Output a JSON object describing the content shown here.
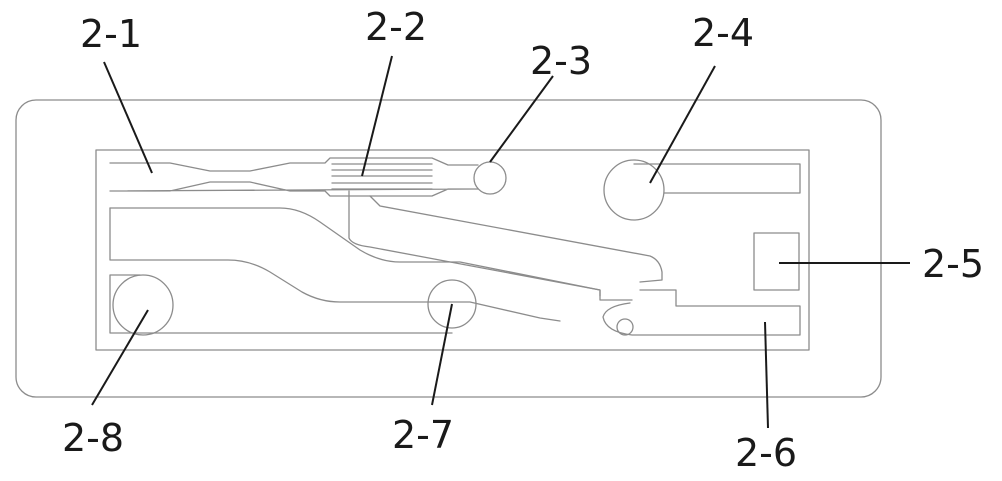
{
  "labels": {
    "part_2_1": "2-1",
    "part_2_2": "2-2",
    "part_2_3": "2-3",
    "part_2_4": "2-4",
    "part_2_5": "2-5",
    "part_2_6": "2-6",
    "part_2_7": "2-7",
    "part_2_8": "2-8"
  },
  "colors": {
    "outline": "#8c8c8c",
    "leader": "#1a1a1a",
    "background": "#ffffff"
  }
}
